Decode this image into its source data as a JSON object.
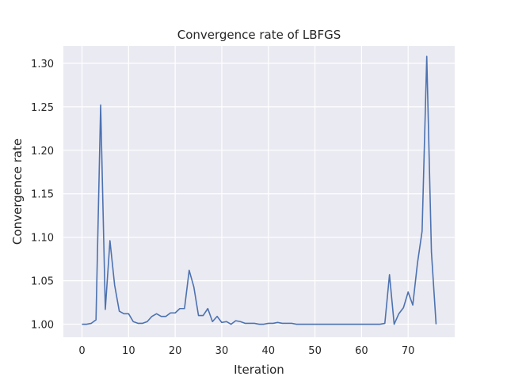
{
  "chart_data": {
    "type": "line",
    "title": "Convergence rate of LBFGS",
    "xlabel": "Iteration",
    "ylabel": "Convergence rate",
    "xlim": [
      -4,
      80
    ],
    "ylim": [
      0.985,
      1.32
    ],
    "xticks": [
      0,
      10,
      20,
      30,
      40,
      50,
      60,
      70
    ],
    "yticks": [
      1.0,
      1.05,
      1.1,
      1.15,
      1.2,
      1.25,
      1.3
    ],
    "ytick_labels": [
      "1.00",
      "1.05",
      "1.10",
      "1.15",
      "1.20",
      "1.25",
      "1.30"
    ],
    "grid": true,
    "background_color": "#eaeaf2",
    "line_color": "#4c72b0",
    "series": [
      {
        "x": [
          0,
          1,
          2,
          3,
          4,
          5,
          6,
          7,
          8,
          9,
          10,
          11,
          12,
          13,
          14,
          15,
          16,
          17,
          18,
          19,
          20,
          21,
          22,
          23,
          24,
          25,
          26,
          27,
          28,
          29,
          30,
          31,
          32,
          33,
          34,
          35,
          36,
          37,
          38,
          39,
          40,
          41,
          42,
          43,
          44,
          45,
          46,
          47,
          48,
          49,
          50,
          51,
          52,
          53,
          54,
          55,
          56,
          57,
          58,
          59,
          60,
          61,
          62,
          63,
          64,
          65,
          66,
          67,
          68,
          69,
          70,
          71,
          72,
          73,
          74,
          75,
          76
        ],
        "values": [
          1.0,
          1.0,
          1.001,
          1.005,
          1.252,
          1.017,
          1.096,
          1.045,
          1.015,
          1.012,
          1.012,
          1.003,
          1.001,
          1.001,
          1.003,
          1.009,
          1.012,
          1.009,
          1.009,
          1.013,
          1.013,
          1.018,
          1.018,
          1.062,
          1.043,
          1.01,
          1.01,
          1.018,
          1.003,
          1.009,
          1.002,
          1.003,
          1.0,
          1.004,
          1.003,
          1.001,
          1.001,
          1.001,
          1.0,
          1.0,
          1.001,
          1.001,
          1.002,
          1.001,
          1.001,
          1.001,
          1.0,
          1.0,
          1.0,
          1.0,
          1.0,
          1.0,
          1.0,
          1.0,
          1.0,
          1.0,
          1.0,
          1.0,
          1.0,
          1.0,
          1.0,
          1.0,
          1.0,
          1.0,
          1.0,
          1.001,
          1.057,
          1.0,
          1.012,
          1.019,
          1.037,
          1.022,
          1.07,
          1.107,
          1.308,
          1.083,
          1.0
        ]
      }
    ]
  }
}
